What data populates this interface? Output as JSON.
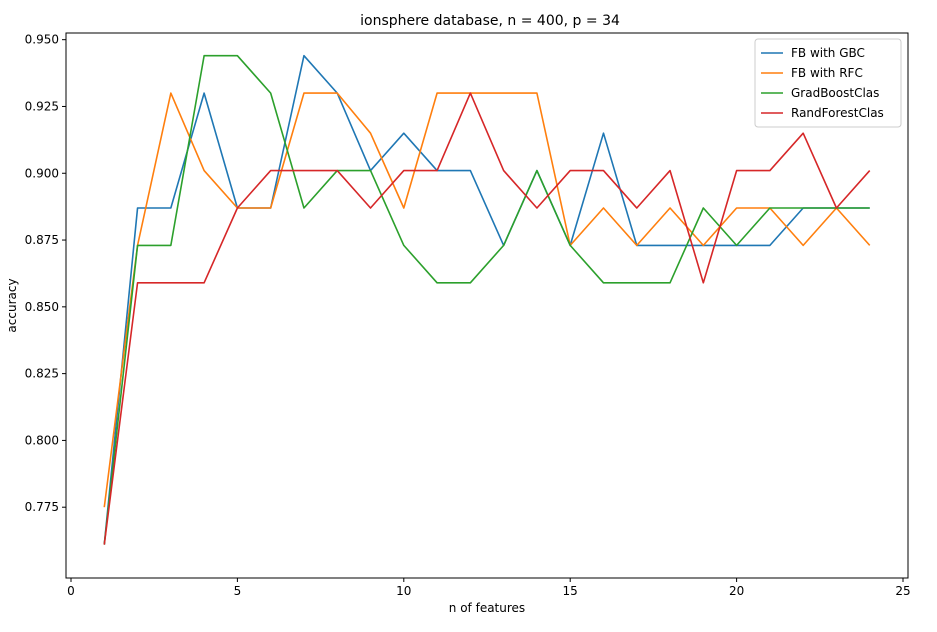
{
  "chart_data": {
    "type": "line",
    "title": "ionsphere database, n = 400, p = 34",
    "xlabel": "n of features",
    "ylabel": "accuracy",
    "xlim": [
      -0.15,
      25.15
    ],
    "ylim": [
      0.7485,
      0.9525
    ],
    "xticks": [
      0,
      5,
      10,
      15,
      20,
      25
    ],
    "xtick_labels": [
      "0",
      "5",
      "10",
      "15",
      "20",
      "25"
    ],
    "yticks": [
      0.775,
      0.8,
      0.825,
      0.85,
      0.875,
      0.9,
      0.925,
      0.95
    ],
    "ytick_labels": [
      "0.775",
      "0.800",
      "0.825",
      "0.850",
      "0.875",
      "0.900",
      "0.925",
      "0.950"
    ],
    "grid": false,
    "legend_position": "top-right",
    "x": [
      1,
      2,
      3,
      4,
      5,
      6,
      7,
      8,
      9,
      10,
      11,
      12,
      13,
      14,
      15,
      16,
      17,
      18,
      19,
      20,
      21,
      22,
      23,
      24
    ],
    "series": [
      {
        "name": "FB with GBC",
        "color": "#1f77b4",
        "values": [
          0.761,
          0.887,
          0.887,
          0.93,
          0.887,
          0.887,
          0.944,
          0.93,
          0.901,
          0.915,
          0.901,
          0.901,
          0.873,
          0.901,
          0.873,
          0.915,
          0.873,
          0.873,
          0.873,
          0.873,
          0.873,
          0.887,
          0.887,
          0.887
        ]
      },
      {
        "name": "FB with RFC",
        "color": "#ff7f0e",
        "values": [
          0.775,
          0.873,
          0.93,
          0.901,
          0.887,
          0.887,
          0.93,
          0.93,
          0.915,
          0.887,
          0.93,
          0.93,
          0.93,
          0.93,
          0.873,
          0.887,
          0.873,
          0.887,
          0.873,
          0.887,
          0.887,
          0.873,
          0.887,
          0.873
        ]
      },
      {
        "name": "GradBoostClas",
        "color": "#2ca02c",
        "values": [
          0.761,
          0.873,
          0.873,
          0.944,
          0.944,
          0.93,
          0.887,
          0.901,
          0.901,
          0.873,
          0.859,
          0.859,
          0.873,
          0.901,
          0.873,
          0.859,
          0.859,
          0.859,
          0.887,
          0.873,
          0.887,
          0.887,
          0.887,
          0.887
        ]
      },
      {
        "name": "RandForestClas",
        "color": "#d62728",
        "values": [
          0.761,
          0.859,
          0.859,
          0.859,
          0.887,
          0.901,
          0.901,
          0.901,
          0.887,
          0.901,
          0.901,
          0.93,
          0.901,
          0.887,
          0.901,
          0.901,
          0.887,
          0.901,
          0.859,
          0.901,
          0.901,
          0.915,
          0.887,
          0.901
        ]
      }
    ]
  }
}
